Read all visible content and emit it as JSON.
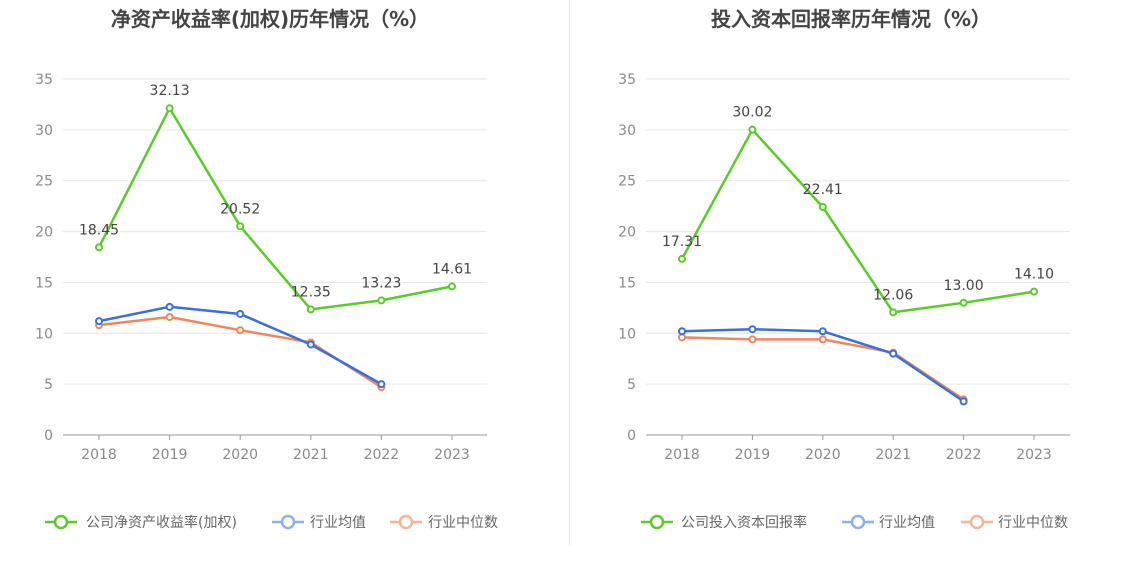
{
  "colors": {
    "company": "#5cc92e",
    "industry_avg": "#3b6fdc",
    "industry_median": "#f0875a",
    "legend_avg": "#8fb0f0",
    "legend_median": "#f6b59b",
    "grid": "#e6e6e6",
    "axis": "#999999"
  },
  "chart_data": [
    {
      "type": "line",
      "title": "净资产收益率(加权)历年情况（%）",
      "categories": [
        "2018",
        "2019",
        "2020",
        "2021",
        "2022",
        "2023"
      ],
      "ylim": [
        0,
        35
      ],
      "yticks": [
        "0",
        "5",
        "10",
        "15",
        "20",
        "25",
        "30",
        "35"
      ],
      "grid": true,
      "legend_position": "bottom",
      "series": [
        {
          "name": "公司净资产收益率(加权)",
          "values": [
            18.45,
            32.13,
            20.52,
            12.35,
            13.23,
            14.61
          ],
          "labels": [
            "18.45",
            "32.13",
            "20.52",
            "12.35",
            "13.23",
            "14.61"
          ]
        },
        {
          "name": "行业均值",
          "values": [
            11.2,
            12.6,
            11.9,
            8.9,
            5.0,
            null
          ]
        },
        {
          "name": "行业中位数",
          "values": [
            10.8,
            11.6,
            10.3,
            9.1,
            4.7,
            null
          ]
        }
      ]
    },
    {
      "type": "line",
      "title": "投入资本回报率历年情况（%）",
      "categories": [
        "2018",
        "2019",
        "2020",
        "2021",
        "2022",
        "2023"
      ],
      "ylim": [
        0,
        35
      ],
      "yticks": [
        "0",
        "5",
        "10",
        "15",
        "20",
        "25",
        "30",
        "35"
      ],
      "grid": true,
      "legend_position": "bottom",
      "series": [
        {
          "name": "公司投入资本回报率",
          "values": [
            17.31,
            30.02,
            22.41,
            12.06,
            13.0,
            14.1
          ],
          "labels": [
            "17.31",
            "30.02",
            "22.41",
            "12.06",
            "13.00",
            "14.10"
          ]
        },
        {
          "name": "行业均值",
          "values": [
            10.2,
            10.4,
            10.2,
            8.0,
            3.3,
            null
          ]
        },
        {
          "name": "行业中位数",
          "values": [
            9.6,
            9.4,
            9.4,
            8.1,
            3.5,
            null
          ]
        }
      ]
    }
  ]
}
